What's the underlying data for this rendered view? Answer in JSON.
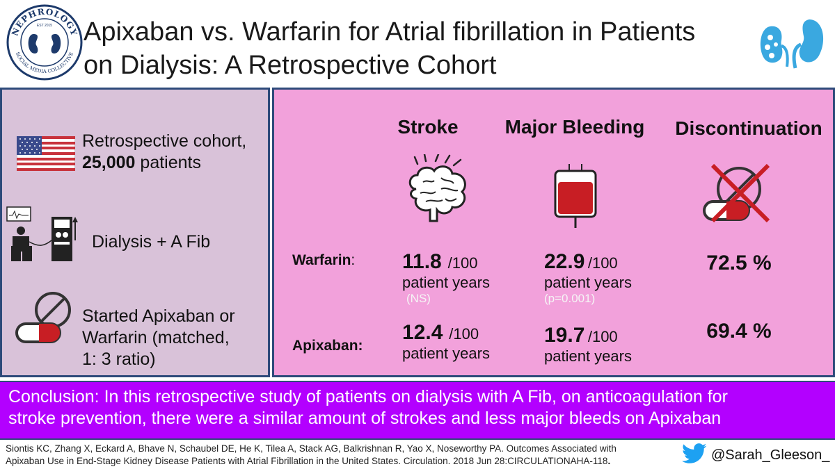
{
  "header": {
    "logo_text_top": "NEPHROLOGY",
    "logo_text_est": "EST 2015",
    "logo_text_bottom": "SOCIAL MEDIA COLLECTIVE",
    "title_line1": "Apixaban vs. Warfarin for Atrial fibrillation in Patients",
    "title_line2": "on Dialysis: A Retrospective Cohort"
  },
  "left_panel": {
    "item1_text": "Retrospective cohort,",
    "item1_bold": "25,000",
    "item1_suffix": " patients",
    "item2_text": "Dialysis + A Fib",
    "item3_line1": "Started Apixaban or",
    "item3_line2": "Warfarin (matched,",
    "item3_line3": "1: 3 ratio)"
  },
  "results": {
    "headers": {
      "stroke": "Stroke",
      "bleeding": "Major Bleeding",
      "discontinuation": "Discontinuation"
    },
    "row_labels": {
      "warfarin": "Warfarin",
      "warfarin_colon": ":",
      "apixaban": "Apixaban:"
    },
    "unit": "/100",
    "patient_years": "patient years",
    "warfarin": {
      "stroke": "11.8",
      "stroke_note": "(NS)",
      "bleeding": "22.9",
      "bleeding_note": "(p=0.001)",
      "discontinuation": "72.5 %"
    },
    "apixaban": {
      "stroke": "12.4",
      "bleeding": "19.7",
      "discontinuation": "69.4 %"
    }
  },
  "conclusion": {
    "line1": "Conclusion: In this retrospective study of patients on dialysis with A Fib, on anticoagulation for",
    "line2": "stroke prevention, there were a similar amount of  strokes and less major bleeds on Apixaban"
  },
  "footer": {
    "citation_line1": "Siontis KC, Zhang X, Eckard A, Bhave N, Schaubel DE, He K, Tilea A, Stack AG, Balkrishnan R, Yao X, Noseworthy PA. Outcomes Associated with",
    "citation_line2": "Apixaban Use in End-Stage Kidney Disease Patients with Atrial Fibrillation in the United States. Circulation. 2018 Jun 28:CIRCULATIONAHA-118",
    "citation_end": ".",
    "twitter_handle": "@Sarah_Gleeson_"
  },
  "colors": {
    "left_bg": "#d9c2d9",
    "right_bg": "#f2a1db",
    "conclusion_bg": "#b300ff",
    "border": "#2d4a7a",
    "twitter_blue": "#1da1f2"
  }
}
